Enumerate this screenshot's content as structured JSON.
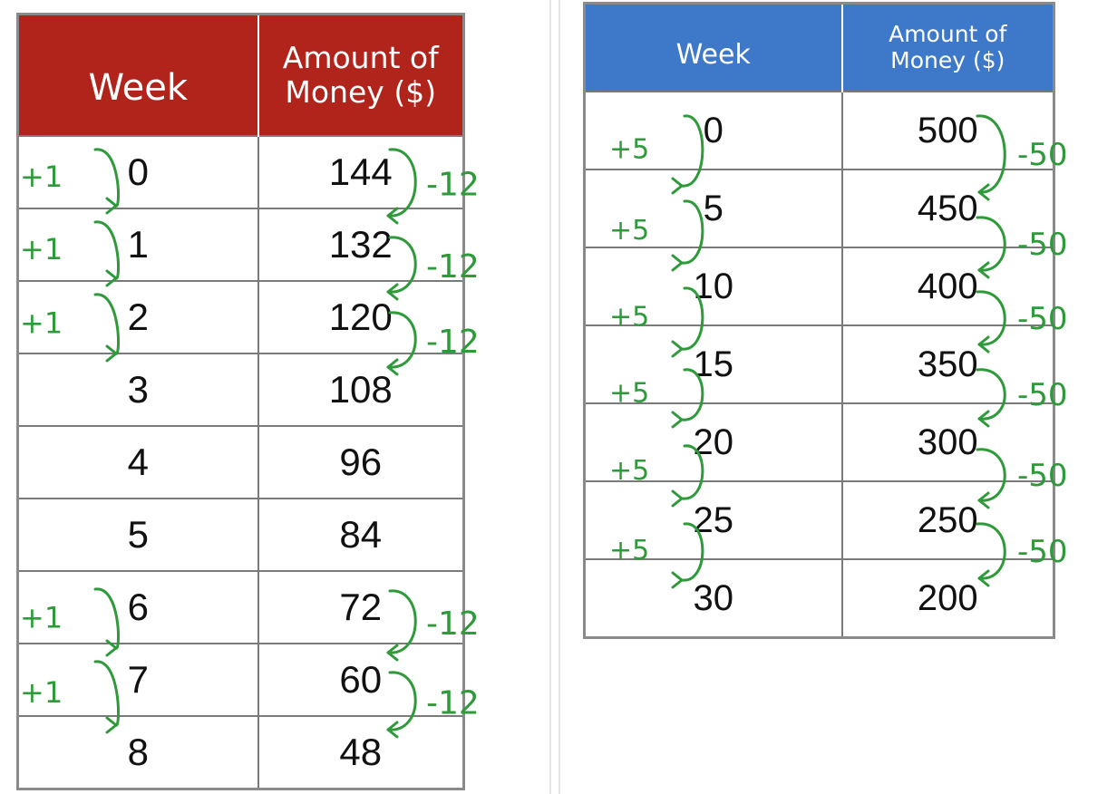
{
  "left_table": {
    "header_week": "Week",
    "header_amount_line1": "Amount of",
    "header_amount_line2": "Money  ($)",
    "header_color": "#b0241b",
    "rows": [
      {
        "week": "0",
        "amount": "144"
      },
      {
        "week": "1",
        "amount": "132"
      },
      {
        "week": "2",
        "amount": "120"
      },
      {
        "week": "3",
        "amount": "108"
      },
      {
        "week": "4",
        "amount": "96"
      },
      {
        "week": "5",
        "amount": "84"
      },
      {
        "week": "6",
        "amount": "72"
      },
      {
        "week": "7",
        "amount": "60"
      },
      {
        "week": "8",
        "amount": "48"
      }
    ],
    "annotations": {
      "week_step": "+1",
      "amount_step": "-12"
    }
  },
  "right_table": {
    "header_week": "Week",
    "header_amount_line1": "Amount of",
    "header_amount_line2": "Money  ($)",
    "header_color": "#3e78c9",
    "rows": [
      {
        "week": "0",
        "amount": "500"
      },
      {
        "week": "5",
        "amount": "450"
      },
      {
        "week": "10",
        "amount": "400"
      },
      {
        "week": "15",
        "amount": "350"
      },
      {
        "week": "20",
        "amount": "300"
      },
      {
        "week": "25",
        "amount": "250"
      },
      {
        "week": "30",
        "amount": "200"
      }
    ],
    "annotations": {
      "week_step": "+5",
      "amount_step": "-50"
    }
  },
  "ink_color": "#2e9a3a"
}
